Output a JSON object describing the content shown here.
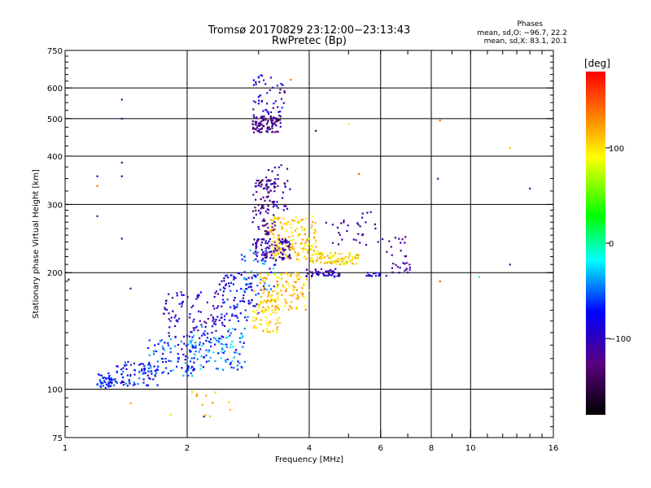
{
  "chart_data": {
    "type": "scatter",
    "title": "Tromsø 20170829 23:12:00−23:13:43",
    "subtitle": "RwPretec (Bp)",
    "xlabel": "Frequency [MHz]",
    "ylabel": "Stationary phase Virtual Height [km]",
    "x_scale": "log",
    "y_scale": "log",
    "xlim": [
      1,
      16
    ],
    "ylim": [
      75,
      750
    ],
    "x_ticks": [
      1,
      2,
      4,
      6,
      8,
      10,
      16
    ],
    "x_tick_labels": [
      "1",
      "2",
      "4",
      "6",
      "8",
      "10",
      "16"
    ],
    "y_ticks": [
      75,
      100,
      200,
      300,
      400,
      500,
      600,
      750
    ],
    "y_tick_labels": [
      "75",
      "100",
      "200",
      "300",
      "400",
      "500",
      "600",
      "750"
    ],
    "grid": true,
    "stats": {
      "heading": "Phases",
      "line_o": "mean, sd,O: −96.7, 22.2",
      "line_x": "mean, sd,X:  83.1, 20.1"
    },
    "colorbar": {
      "label": "[deg]",
      "range": [
        -180,
        180
      ],
      "ticks": [
        100,
        0,
        -100
      ],
      "tick_labels": [
        "100",
        "0",
        "−100"
      ]
    },
    "clusters": [
      {
        "fx": [
          1.2,
          1.3
        ],
        "fy": [
          100,
          110
        ],
        "n": 40,
        "phase": [
          -90,
          -60
        ]
      },
      {
        "fx": [
          1.3,
          1.7
        ],
        "fy": [
          102,
          118
        ],
        "n": 90,
        "phase": [
          -110,
          -50
        ]
      },
      {
        "fx": [
          1.6,
          2.1
        ],
        "fy": [
          108,
          135
        ],
        "n": 80,
        "phase": [
          -100,
          -40
        ]
      },
      {
        "fx": [
          2.0,
          2.8
        ],
        "fy": [
          112,
          145
        ],
        "n": 120,
        "phase": [
          -90,
          -30
        ]
      },
      {
        "fx": [
          1.75,
          2.5
        ],
        "fy": [
          135,
          180
        ],
        "n": 100,
        "phase": [
          -130,
          -70
        ]
      },
      {
        "fx": [
          2.4,
          3.0
        ],
        "fy": [
          150,
          200
        ],
        "n": 90,
        "phase": [
          -110,
          -60
        ]
      },
      {
        "fx": [
          2.7,
          3.3
        ],
        "fy": [
          180,
          230
        ],
        "n": 50,
        "phase": [
          -90,
          -30
        ]
      },
      {
        "fx": [
          2.9,
          3.4
        ],
        "fy": [
          140,
          180
        ],
        "n": 70,
        "phase": [
          80,
          130
        ]
      },
      {
        "fx": [
          3.0,
          4.0
        ],
        "fy": [
          160,
          200
        ],
        "n": 110,
        "phase": [
          80,
          140
        ]
      },
      {
        "fx": [
          2.9,
          3.6
        ],
        "fy": [
          215,
          245
        ],
        "n": 110,
        "phase": [
          -140,
          -90
        ]
      },
      {
        "fx": [
          2.9,
          3.3
        ],
        "fy": [
          250,
          350
        ],
        "n": 90,
        "phase": [
          -150,
          -100
        ]
      },
      {
        "fx": [
          3.1,
          3.6
        ],
        "fy": [
          290,
          380
        ],
        "n": 40,
        "phase": [
          -130,
          -90
        ]
      },
      {
        "fx": [
          3.2,
          4.2
        ],
        "fy": [
          215,
          280
        ],
        "n": 150,
        "phase": [
          80,
          130
        ]
      },
      {
        "fx": [
          4.0,
          5.3
        ],
        "fy": [
          210,
          225
        ],
        "n": 90,
        "phase": [
          70,
          130
        ]
      },
      {
        "fx": [
          3.9,
          4.8
        ],
        "fy": [
          195,
          205
        ],
        "n": 50,
        "phase": [
          -120,
          -90
        ]
      },
      {
        "fx": [
          5.5,
          6.2
        ],
        "fy": [
          196,
          200
        ],
        "n": 15,
        "phase": [
          -110,
          -80
        ]
      },
      {
        "fx": [
          6.4,
          7.1
        ],
        "fy": [
          200,
          212
        ],
        "n": 18,
        "phase": [
          -130,
          -100
        ]
      },
      {
        "fx": [
          4.4,
          5.9
        ],
        "fy": [
          235,
          290
        ],
        "n": 30,
        "phase": [
          -140,
          -100
        ]
      },
      {
        "fx": [
          5.9,
          7.0
        ],
        "fy": [
          220,
          250
        ],
        "n": 15,
        "phase": [
          -140,
          -110
        ]
      },
      {
        "fx": [
          2.9,
          3.4
        ],
        "fy": [
          460,
          510
        ],
        "n": 90,
        "phase": [
          -150,
          -100
        ]
      },
      {
        "fx": [
          2.9,
          3.5
        ],
        "fy": [
          510,
          650
        ],
        "n": 50,
        "phase": [
          -140,
          -60
        ]
      },
      {
        "fx": [
          1.8,
          2.6
        ],
        "fy": [
          85,
          100
        ],
        "n": 12,
        "phase": [
          100,
          130
        ]
      }
    ],
    "outliers": [
      {
        "f": 1.02,
        "h": 192,
        "phase": -130
      },
      {
        "f": 1.2,
        "h": 355,
        "phase": -100
      },
      {
        "f": 1.2,
        "h": 335,
        "phase": 140
      },
      {
        "f": 1.2,
        "h": 280,
        "phase": -120
      },
      {
        "f": 1.38,
        "h": 560,
        "phase": -130
      },
      {
        "f": 1.38,
        "h": 500,
        "phase": -120
      },
      {
        "f": 1.38,
        "h": 385,
        "phase": -120
      },
      {
        "f": 1.38,
        "h": 355,
        "phase": -100
      },
      {
        "f": 1.38,
        "h": 245,
        "phase": -110
      },
      {
        "f": 1.45,
        "h": 182,
        "phase": -130
      },
      {
        "f": 1.45,
        "h": 92,
        "phase": 120
      },
      {
        "f": 4.15,
        "h": 465,
        "phase": -130
      },
      {
        "f": 5.0,
        "h": 485,
        "phase": 100
      },
      {
        "f": 5.3,
        "h": 360,
        "phase": 150
      },
      {
        "f": 3.6,
        "h": 630,
        "phase": 140
      },
      {
        "f": 8.4,
        "h": 495,
        "phase": 140
      },
      {
        "f": 8.3,
        "h": 350,
        "phase": -110
      },
      {
        "f": 8.4,
        "h": 190,
        "phase": 150
      },
      {
        "f": 10.5,
        "h": 195,
        "phase": -20
      },
      {
        "f": 12.5,
        "h": 420,
        "phase": 110
      },
      {
        "f": 12.5,
        "h": 210,
        "phase": -130
      },
      {
        "f": 14.0,
        "h": 330,
        "phase": -120
      },
      {
        "f": 2.2,
        "h": 85,
        "phase": -130
      }
    ]
  }
}
